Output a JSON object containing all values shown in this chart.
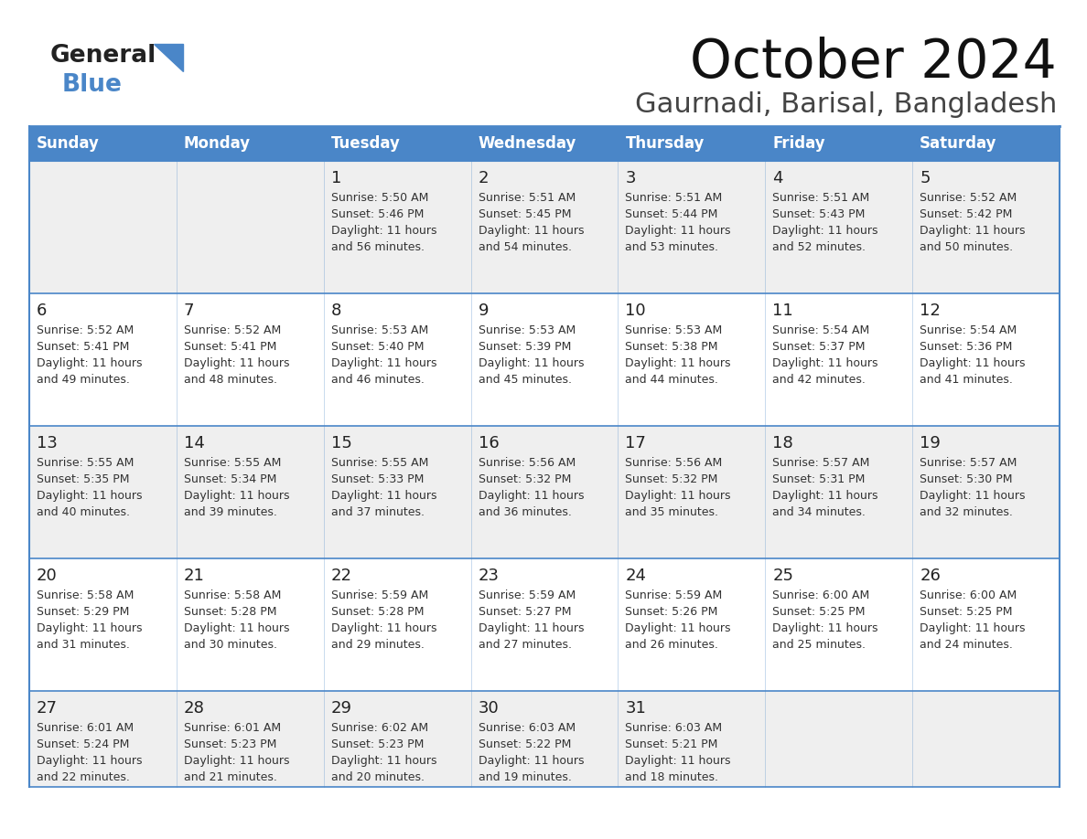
{
  "title": "October 2024",
  "subtitle": "Gaurnadi, Barisal, Bangladesh",
  "days_of_week": [
    "Sunday",
    "Monday",
    "Tuesday",
    "Wednesday",
    "Thursday",
    "Friday",
    "Saturday"
  ],
  "header_bg": "#4a86c8",
  "header_text": "#ffffff",
  "row_bg_odd": "#efefef",
  "row_bg_even": "#ffffff",
  "border_color": "#4a86c8",
  "text_color": "#333333",
  "day_num_color": "#222222",
  "calendar_data": [
    [
      {
        "day": null,
        "sunrise": null,
        "sunset": null,
        "daylight": null
      },
      {
        "day": null,
        "sunrise": null,
        "sunset": null,
        "daylight": null
      },
      {
        "day": 1,
        "sunrise": "5:50 AM",
        "sunset": "5:46 PM",
        "daylight": "11 hours and 56 minutes."
      },
      {
        "day": 2,
        "sunrise": "5:51 AM",
        "sunset": "5:45 PM",
        "daylight": "11 hours and 54 minutes."
      },
      {
        "day": 3,
        "sunrise": "5:51 AM",
        "sunset": "5:44 PM",
        "daylight": "11 hours and 53 minutes."
      },
      {
        "day": 4,
        "sunrise": "5:51 AM",
        "sunset": "5:43 PM",
        "daylight": "11 hours and 52 minutes."
      },
      {
        "day": 5,
        "sunrise": "5:52 AM",
        "sunset": "5:42 PM",
        "daylight": "11 hours and 50 minutes."
      }
    ],
    [
      {
        "day": 6,
        "sunrise": "5:52 AM",
        "sunset": "5:41 PM",
        "daylight": "11 hours and 49 minutes."
      },
      {
        "day": 7,
        "sunrise": "5:52 AM",
        "sunset": "5:41 PM",
        "daylight": "11 hours and 48 minutes."
      },
      {
        "day": 8,
        "sunrise": "5:53 AM",
        "sunset": "5:40 PM",
        "daylight": "11 hours and 46 minutes."
      },
      {
        "day": 9,
        "sunrise": "5:53 AM",
        "sunset": "5:39 PM",
        "daylight": "11 hours and 45 minutes."
      },
      {
        "day": 10,
        "sunrise": "5:53 AM",
        "sunset": "5:38 PM",
        "daylight": "11 hours and 44 minutes."
      },
      {
        "day": 11,
        "sunrise": "5:54 AM",
        "sunset": "5:37 PM",
        "daylight": "11 hours and 42 minutes."
      },
      {
        "day": 12,
        "sunrise": "5:54 AM",
        "sunset": "5:36 PM",
        "daylight": "11 hours and 41 minutes."
      }
    ],
    [
      {
        "day": 13,
        "sunrise": "5:55 AM",
        "sunset": "5:35 PM",
        "daylight": "11 hours and 40 minutes."
      },
      {
        "day": 14,
        "sunrise": "5:55 AM",
        "sunset": "5:34 PM",
        "daylight": "11 hours and 39 minutes."
      },
      {
        "day": 15,
        "sunrise": "5:55 AM",
        "sunset": "5:33 PM",
        "daylight": "11 hours and 37 minutes."
      },
      {
        "day": 16,
        "sunrise": "5:56 AM",
        "sunset": "5:32 PM",
        "daylight": "11 hours and 36 minutes."
      },
      {
        "day": 17,
        "sunrise": "5:56 AM",
        "sunset": "5:32 PM",
        "daylight": "11 hours and 35 minutes."
      },
      {
        "day": 18,
        "sunrise": "5:57 AM",
        "sunset": "5:31 PM",
        "daylight": "11 hours and 34 minutes."
      },
      {
        "day": 19,
        "sunrise": "5:57 AM",
        "sunset": "5:30 PM",
        "daylight": "11 hours and 32 minutes."
      }
    ],
    [
      {
        "day": 20,
        "sunrise": "5:58 AM",
        "sunset": "5:29 PM",
        "daylight": "11 hours and 31 minutes."
      },
      {
        "day": 21,
        "sunrise": "5:58 AM",
        "sunset": "5:28 PM",
        "daylight": "11 hours and 30 minutes."
      },
      {
        "day": 22,
        "sunrise": "5:59 AM",
        "sunset": "5:28 PM",
        "daylight": "11 hours and 29 minutes."
      },
      {
        "day": 23,
        "sunrise": "5:59 AM",
        "sunset": "5:27 PM",
        "daylight": "11 hours and 27 minutes."
      },
      {
        "day": 24,
        "sunrise": "5:59 AM",
        "sunset": "5:26 PM",
        "daylight": "11 hours and 26 minutes."
      },
      {
        "day": 25,
        "sunrise": "6:00 AM",
        "sunset": "5:25 PM",
        "daylight": "11 hours and 25 minutes."
      },
      {
        "day": 26,
        "sunrise": "6:00 AM",
        "sunset": "5:25 PM",
        "daylight": "11 hours and 24 minutes."
      }
    ],
    [
      {
        "day": 27,
        "sunrise": "6:01 AM",
        "sunset": "5:24 PM",
        "daylight": "11 hours and 22 minutes."
      },
      {
        "day": 28,
        "sunrise": "6:01 AM",
        "sunset": "5:23 PM",
        "daylight": "11 hours and 21 minutes."
      },
      {
        "day": 29,
        "sunrise": "6:02 AM",
        "sunset": "5:23 PM",
        "daylight": "11 hours and 20 minutes."
      },
      {
        "day": 30,
        "sunrise": "6:03 AM",
        "sunset": "5:22 PM",
        "daylight": "11 hours and 19 minutes."
      },
      {
        "day": 31,
        "sunrise": "6:03 AM",
        "sunset": "5:21 PM",
        "daylight": "11 hours and 18 minutes."
      },
      {
        "day": null,
        "sunrise": null,
        "sunset": null,
        "daylight": null
      },
      {
        "day": null,
        "sunrise": null,
        "sunset": null,
        "daylight": null
      }
    ]
  ],
  "logo_general_color": "#222222",
  "logo_blue_color": "#4a86c8",
  "logo_triangle_color": "#4a86c8"
}
